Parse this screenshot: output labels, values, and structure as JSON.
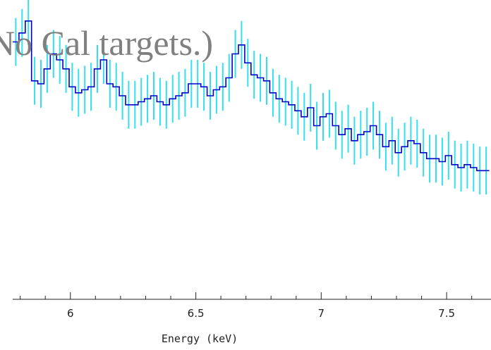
{
  "chart_data": {
    "type": "line",
    "title": "No Cal targets.)",
    "xlabel": "Energy (keV)",
    "ylabel": "",
    "xlim": [
      5.77,
      7.66
    ],
    "ylim": [
      0,
      1
    ],
    "xticks": [
      "6",
      "6.5",
      "7",
      "7.5"
    ],
    "xtick_values": [
      6,
      6.5,
      7,
      7.5
    ],
    "grid": false,
    "colors": {
      "step": "#0000cc",
      "errorbar": "#33e0f0",
      "title": "#808080"
    },
    "series": [
      {
        "bin_width": 0.025,
        "x": [
          5.77,
          5.795,
          5.82,
          5.845,
          5.87,
          5.895,
          5.92,
          5.945,
          5.97,
          5.995,
          6.02,
          6.045,
          6.07,
          6.095,
          6.12,
          6.145,
          6.17,
          6.195,
          6.22,
          6.245,
          6.27,
          6.295,
          6.32,
          6.345,
          6.37,
          6.395,
          6.42,
          6.445,
          6.47,
          6.495,
          6.52,
          6.545,
          6.57,
          6.595,
          6.62,
          6.645,
          6.67,
          6.695,
          6.72,
          6.745,
          6.77,
          6.795,
          6.82,
          6.845,
          6.87,
          6.895,
          6.92,
          6.945,
          6.97,
          6.995,
          7.02,
          7.045,
          7.07,
          7.095,
          7.12,
          7.145,
          7.17,
          7.195,
          7.22,
          7.245,
          7.27,
          7.295,
          7.32,
          7.345,
          7.37,
          7.395,
          7.42,
          7.445,
          7.47,
          7.495,
          7.52,
          7.545,
          7.57,
          7.595,
          7.62,
          7.645
        ],
        "y": [
          0.86,
          0.89,
          0.93,
          0.73,
          0.72,
          0.77,
          0.82,
          0.8,
          0.77,
          0.71,
          0.69,
          0.7,
          0.71,
          0.77,
          0.8,
          0.72,
          0.71,
          0.68,
          0.65,
          0.65,
          0.66,
          0.67,
          0.68,
          0.66,
          0.65,
          0.67,
          0.68,
          0.69,
          0.72,
          0.72,
          0.71,
          0.68,
          0.7,
          0.71,
          0.74,
          0.82,
          0.85,
          0.79,
          0.75,
          0.74,
          0.73,
          0.69,
          0.67,
          0.66,
          0.65,
          0.63,
          0.61,
          0.64,
          0.58,
          0.61,
          0.62,
          0.58,
          0.55,
          0.57,
          0.53,
          0.55,
          0.56,
          0.58,
          0.55,
          0.51,
          0.53,
          0.49,
          0.51,
          0.53,
          0.52,
          0.49,
          0.47,
          0.47,
          0.46,
          0.48,
          0.45,
          0.44,
          0.45,
          0.44,
          0.43,
          0.43
        ],
        "yerr": [
          0.08,
          0.08,
          0.08,
          0.08,
          0.08,
          0.08,
          0.08,
          0.08,
          0.08,
          0.08,
          0.08,
          0.08,
          0.08,
          0.08,
          0.08,
          0.08,
          0.08,
          0.08,
          0.08,
          0.08,
          0.08,
          0.08,
          0.08,
          0.08,
          0.08,
          0.08,
          0.08,
          0.08,
          0.08,
          0.08,
          0.08,
          0.08,
          0.08,
          0.08,
          0.08,
          0.08,
          0.08,
          0.08,
          0.08,
          0.08,
          0.08,
          0.08,
          0.08,
          0.08,
          0.08,
          0.08,
          0.08,
          0.08,
          0.08,
          0.08,
          0.08,
          0.08,
          0.08,
          0.08,
          0.08,
          0.08,
          0.08,
          0.08,
          0.08,
          0.08,
          0.08,
          0.08,
          0.08,
          0.08,
          0.08,
          0.08,
          0.08,
          0.08,
          0.08,
          0.08,
          0.08,
          0.08,
          0.08,
          0.08,
          0.08,
          0.08
        ]
      }
    ]
  }
}
